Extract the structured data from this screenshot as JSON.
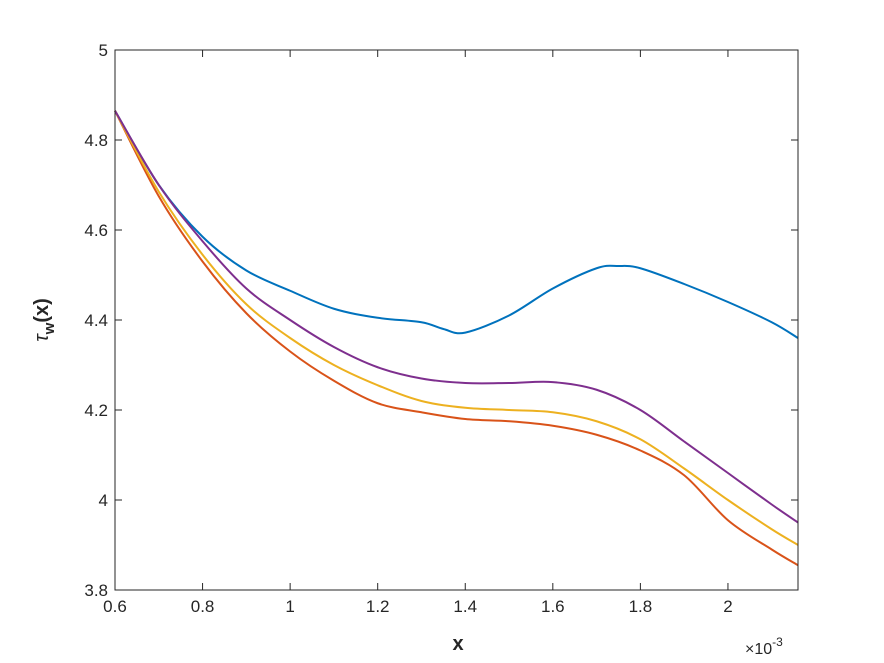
{
  "chart_data": {
    "type": "line",
    "title": "",
    "xlabel": "x",
    "ylabel": "τw(x)",
    "ylabel_parts": {
      "symbol": "τ",
      "subscript": "w",
      "suffix": "(x)"
    },
    "x_exponent_label": "×10-3",
    "x_exponent_parts": {
      "base": "×10",
      "power": "-3"
    },
    "xlim": [
      0.6,
      2.16
    ],
    "ylim": [
      3.8,
      5.0
    ],
    "x_scale_note": "x values in units of 10^-3",
    "xticks": [
      0.6,
      0.8,
      1.0,
      1.2,
      1.4,
      1.6,
      1.8,
      2.0
    ],
    "xtick_labels": [
      "0.6",
      "0.8",
      "1",
      "1.2",
      "1.4",
      "1.6",
      "1.8",
      "2"
    ],
    "yticks": [
      3.8,
      4.0,
      4.2,
      4.4,
      4.6,
      4.8,
      5.0
    ],
    "ytick_labels": [
      "3.8",
      "4",
      "4.2",
      "4.4",
      "4.6",
      "4.8",
      "5"
    ],
    "grid": false,
    "legend": "none",
    "colors": [
      "#0072bd",
      "#d95319",
      "#edb120",
      "#7e2f8e"
    ],
    "series": [
      {
        "color": "#0072bd",
        "x": [
          0.6,
          0.7,
          0.8,
          0.9,
          1.0,
          1.1,
          1.2,
          1.3,
          1.35,
          1.4,
          1.5,
          1.6,
          1.7,
          1.75,
          1.8,
          1.9,
          2.0,
          2.1,
          2.16
        ],
        "y": [
          4.865,
          4.7,
          4.585,
          4.51,
          4.465,
          4.425,
          4.405,
          4.395,
          4.38,
          4.372,
          4.41,
          4.47,
          4.515,
          4.52,
          4.515,
          4.48,
          4.44,
          4.395,
          4.36
        ]
      },
      {
        "color": "#d95319",
        "x": [
          0.6,
          0.7,
          0.8,
          0.9,
          1.0,
          1.1,
          1.2,
          1.3,
          1.4,
          1.5,
          1.6,
          1.7,
          1.8,
          1.9,
          2.0,
          2.1,
          2.16
        ],
        "y": [
          4.865,
          4.675,
          4.53,
          4.415,
          4.33,
          4.265,
          4.215,
          4.195,
          4.18,
          4.175,
          4.165,
          4.145,
          4.11,
          4.055,
          3.955,
          3.89,
          3.855
        ]
      },
      {
        "color": "#edb120",
        "x": [
          0.6,
          0.7,
          0.8,
          0.9,
          1.0,
          1.1,
          1.2,
          1.3,
          1.4,
          1.5,
          1.6,
          1.7,
          1.8,
          1.9,
          2.0,
          2.1,
          2.16
        ],
        "y": [
          4.865,
          4.685,
          4.545,
          4.435,
          4.36,
          4.3,
          4.255,
          4.22,
          4.205,
          4.2,
          4.195,
          4.175,
          4.135,
          4.07,
          4.0,
          3.935,
          3.9
        ]
      },
      {
        "color": "#7e2f8e",
        "x": [
          0.6,
          0.7,
          0.8,
          0.9,
          1.0,
          1.1,
          1.2,
          1.3,
          1.4,
          1.5,
          1.6,
          1.7,
          1.8,
          1.9,
          2.0,
          2.1,
          2.16
        ],
        "y": [
          4.865,
          4.7,
          4.575,
          4.47,
          4.4,
          4.34,
          4.295,
          4.27,
          4.26,
          4.26,
          4.262,
          4.245,
          4.2,
          4.13,
          4.06,
          3.99,
          3.95
        ]
      }
    ]
  }
}
